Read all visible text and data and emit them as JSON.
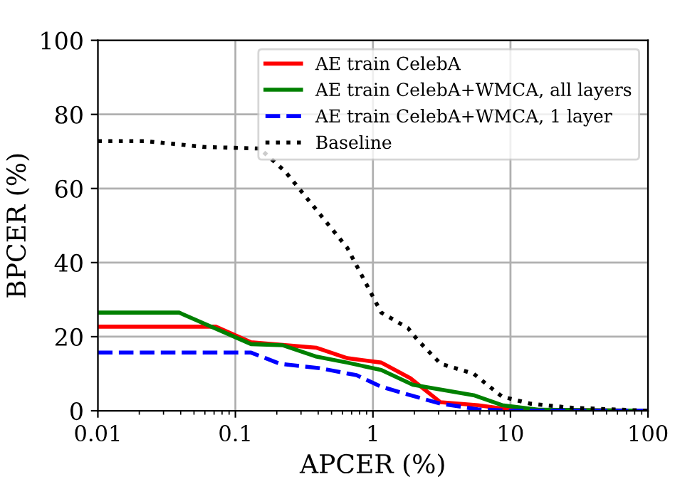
{
  "chart_data": {
    "type": "line",
    "xlabel": "APCER (%)",
    "ylabel": "BPCER (%)",
    "log": "x",
    "xlim": [
      0.01,
      100
    ],
    "xticks": [
      {
        "value": 0.01,
        "label": "0.01"
      },
      {
        "value": 0.1,
        "label": "0.1"
      },
      {
        "value": 1,
        "label": "1"
      },
      {
        "value": 10,
        "label": "10"
      },
      {
        "value": 100,
        "label": "100"
      }
    ],
    "ylim": [
      0,
      100
    ],
    "yticks": [
      0,
      20,
      40,
      60,
      80,
      100
    ],
    "grid": true,
    "legend": "top right",
    "series": [
      {
        "name": "AE train CelebA",
        "color": "#ff0000",
        "line_style": "solid",
        "x": [
          0.01,
          0.072,
          0.13,
          0.39,
          0.65,
          1.15,
          1.87,
          3.1,
          5.8,
          10,
          100
        ],
        "values": [
          22.7,
          22.7,
          18.5,
          17,
          14.2,
          13,
          8.8,
          2.3,
          1.5,
          0.3,
          0
        ]
      },
      {
        "name": "AE train CelebA+WMCA, all layers",
        "color": "#008000",
        "line_style": "solid",
        "x": [
          0.01,
          0.039,
          0.13,
          0.22,
          0.39,
          0.65,
          1.15,
          1.95,
          5.4,
          8.7,
          16,
          100
        ],
        "values": [
          26.5,
          26.5,
          18,
          17.7,
          14.6,
          13,
          11,
          7,
          4.2,
          1.5,
          0.3,
          0
        ]
      },
      {
        "name": "AE train CelebA+WMCA, 1 layer",
        "color": "#0000ff",
        "line_style": "dashed",
        "x": [
          0.01,
          0.13,
          0.21,
          0.41,
          0.76,
          1.15,
          1.87,
          3.1,
          5.8,
          10,
          100
        ],
        "values": [
          15.7,
          15.7,
          12.7,
          11.5,
          9.6,
          6.5,
          4.2,
          1.9,
          0.4,
          0,
          0
        ]
      },
      {
        "name": "Baseline",
        "color": "#000000",
        "line_style": "dotted",
        "x": [
          0.01,
          0.022,
          0.06,
          0.15,
          0.23,
          0.65,
          1.15,
          1.8,
          2.1,
          3.1,
          5.4,
          8.7,
          14,
          28,
          100
        ],
        "values": [
          72.8,
          72.8,
          71.2,
          70.8,
          64.6,
          44,
          26.5,
          22.3,
          19.2,
          12.7,
          10,
          3.8,
          1.9,
          0.8,
          0
        ]
      }
    ]
  }
}
